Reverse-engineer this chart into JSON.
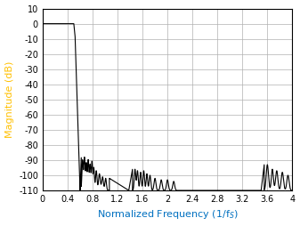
{
  "title": "",
  "xlabel": "Normalized Frequency (1/f$_S$)",
  "ylabel": "Magnitude (dB)",
  "xlim": [
    0,
    4
  ],
  "ylim": [
    -110,
    10
  ],
  "xticks": [
    0,
    0.4,
    0.8,
    1.2,
    1.6,
    2.0,
    2.4,
    2.8,
    3.2,
    3.6,
    4.0
  ],
  "yticks": [
    10,
    0,
    -10,
    -20,
    -30,
    -40,
    -50,
    -60,
    -70,
    -80,
    -90,
    -100,
    -110
  ],
  "xtick_labels": [
    "0",
    "0.4",
    "0.8",
    "1.2",
    "1.6",
    "2",
    "2.4",
    "2.8",
    "3.2",
    "3.6",
    "4"
  ],
  "ytick_labels": [
    "10",
    "0",
    "-10",
    "-20",
    "-30",
    "-40",
    "-50",
    "-60",
    "-70",
    "-80",
    "-90",
    "-100",
    "-110"
  ],
  "line_color": "#000000",
  "grid_color": "#b0b0b0",
  "xlabel_color": "#0070c0",
  "ylabel_color": "#ffc000",
  "background_color": "#ffffff"
}
